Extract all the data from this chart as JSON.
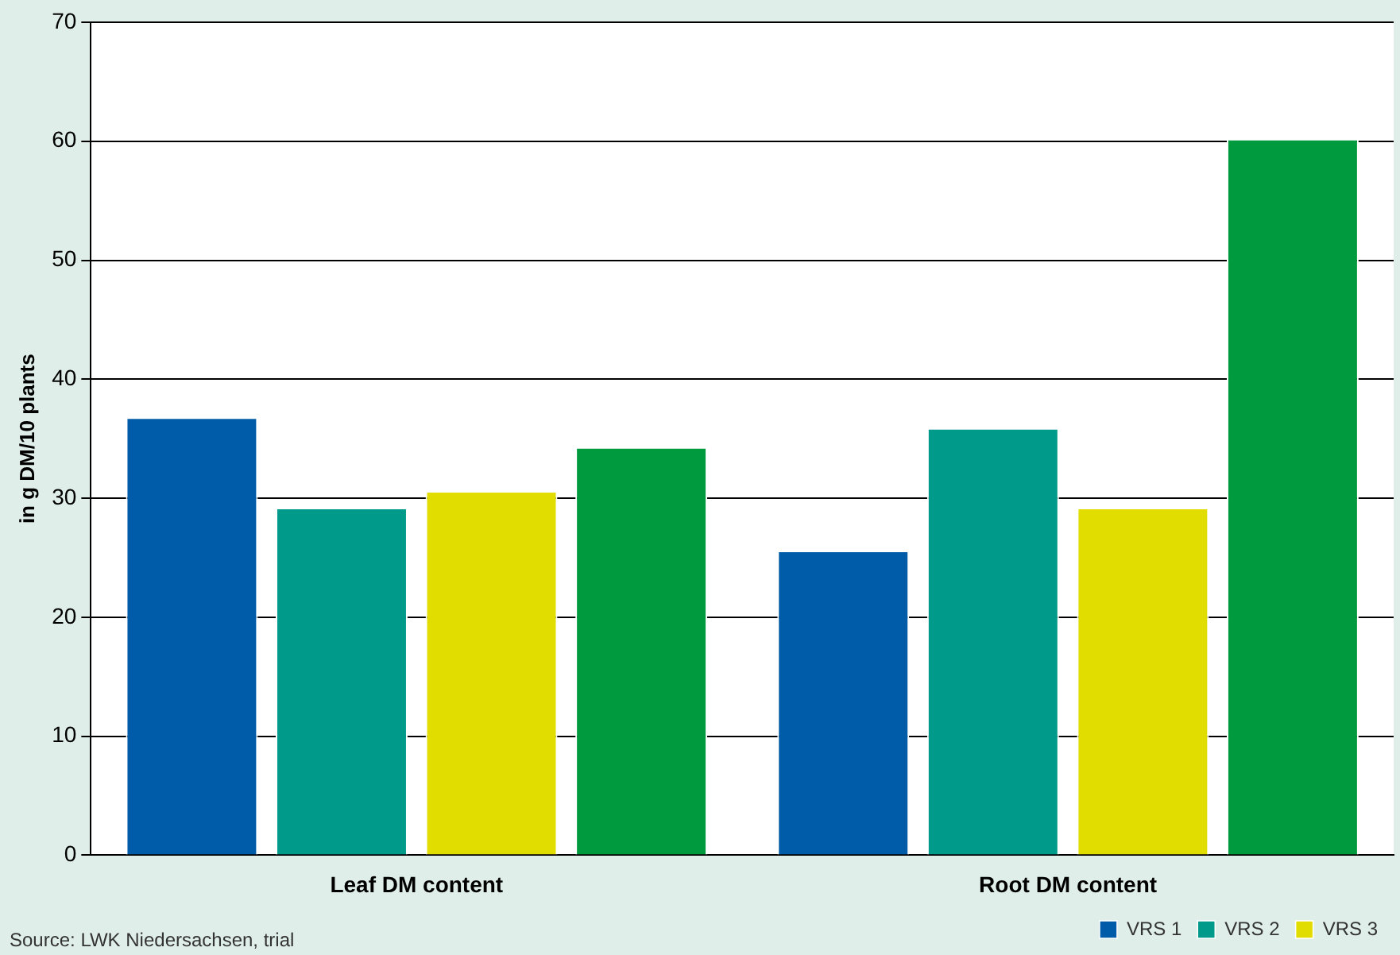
{
  "chart_data": {
    "type": "bar",
    "ylabel": "in g DM/10 plants",
    "categories": [
      "Leaf DM content",
      "Root DM content"
    ],
    "series": [
      {
        "name": "VRS 1",
        "color": "#005ca9",
        "values": [
          36.8,
          25.6
        ]
      },
      {
        "name": "VRS 2",
        "color": "#009a8a",
        "values": [
          29.2,
          35.9
        ]
      },
      {
        "name": "VRS 3",
        "color": "#e2dd00",
        "values": [
          30.6,
          29.2
        ]
      },
      {
        "color": "#009a3e",
        "values": [
          34.3,
          60.2
        ]
      }
    ],
    "ylim": [
      0,
      70
    ],
    "yticks": [
      0,
      10,
      20,
      30,
      40,
      50,
      60,
      70
    ],
    "grid": "y",
    "legend": "bottom right",
    "annotations": [
      "Source: LWK Niedersachsen, trial"
    ]
  }
}
